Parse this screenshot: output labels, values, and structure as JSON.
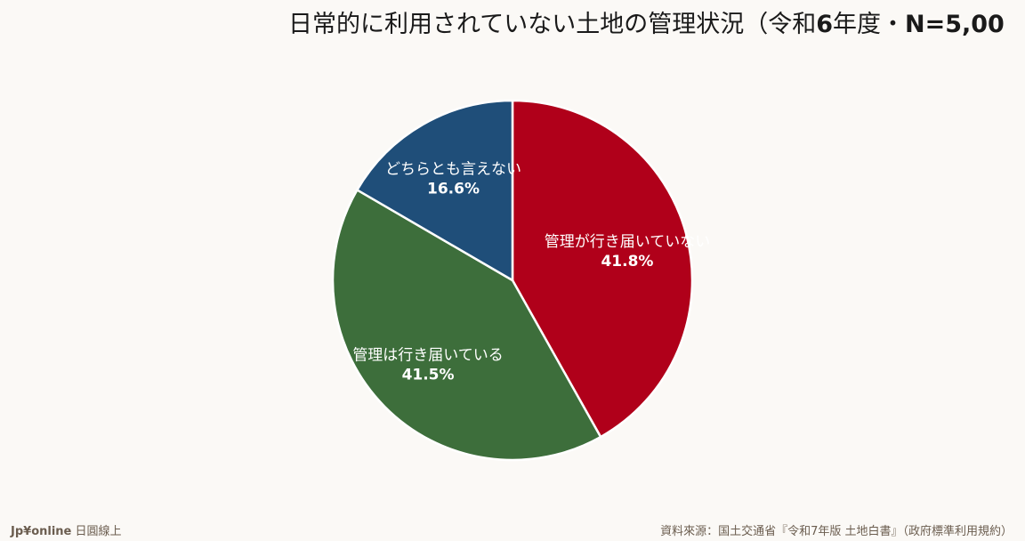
{
  "chart_data": {
    "type": "pie",
    "title_main": "日常的に利用されていない土地の管理状況（令和",
    "title_bold": "6",
    "title_mid": "年度・",
    "title_bold2": "N=5,00",
    "categories": [
      "管理が行き届いていない",
      "管理は行き届いている",
      "どちらとも言えない"
    ],
    "values": [
      41.8,
      41.5,
      16.6
    ],
    "value_labels": [
      "41.8%",
      "41.5%",
      "16.6%"
    ],
    "colors": [
      "#b0001a",
      "#3d6e3b",
      "#1f4e79"
    ],
    "start_angle": "12 o'clock",
    "direction": "clockwise"
  },
  "footer": {
    "brand": "Jp¥online",
    "brand_suffix": "日圓線上",
    "source": "資料來源：国土交通省『令和7年版 土地白書』（政府標準利用規約）"
  }
}
